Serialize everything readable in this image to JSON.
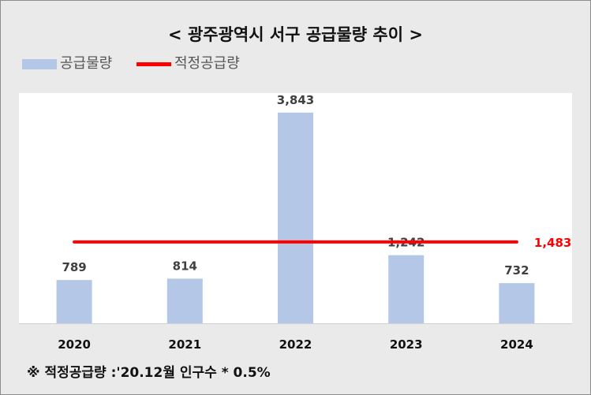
{
  "chart_data": {
    "type": "bar",
    "title": "< 광주광역시 서구 공급물량 추이 >",
    "categories": [
      "2020",
      "2021",
      "2022",
      "2023",
      "2024"
    ],
    "series": [
      {
        "name": "공급물량",
        "type": "bar",
        "color": "#b4c7e7",
        "values": [
          789,
          814,
          3843,
          1242,
          732
        ]
      },
      {
        "name": "적정공급량",
        "type": "line",
        "color": "#ff0000",
        "values": [
          1483,
          1483,
          1483,
          1483,
          1483
        ]
      }
    ],
    "data_labels": [
      "789",
      "814",
      "3,843",
      "1,242",
      "732"
    ],
    "line_label": "1,483",
    "ylim": [
      0,
      4200
    ],
    "grid": false,
    "legend_position": "top-left",
    "note": "※ 적정공급량 :'20.12월 인구수 * 0.5%"
  }
}
